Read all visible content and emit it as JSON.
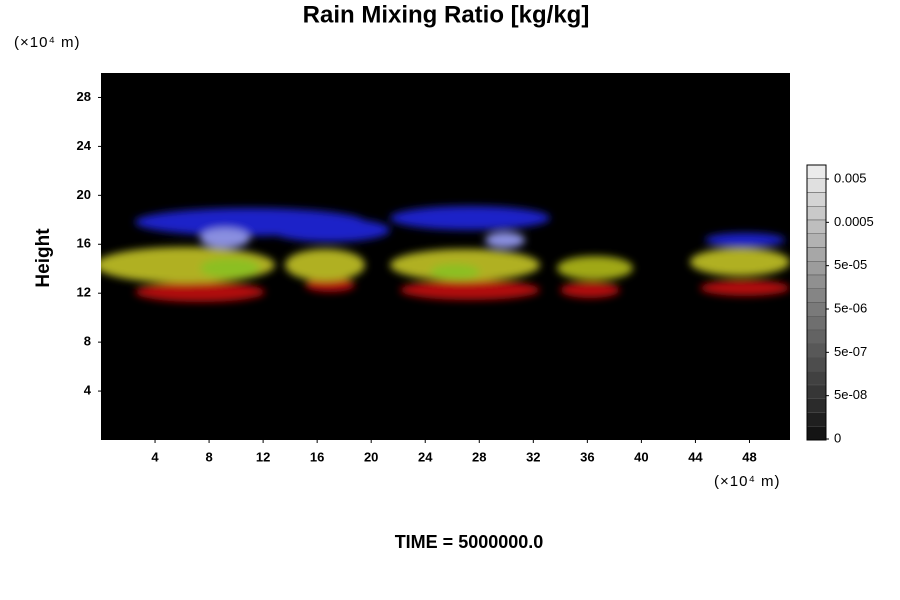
{
  "chart_data": {
    "type": "volume",
    "title": "Rain Mixing Ratio [kg/kg]",
    "y_label": "Height",
    "y_unit": "(×10⁴ m)",
    "x_unit": "(×10⁴ m)",
    "xlim": [
      0,
      51
    ],
    "xticks": [
      4,
      8,
      12,
      16,
      20,
      24,
      28,
      32,
      36,
      40,
      44,
      48
    ],
    "ylim": [
      0,
      30
    ],
    "yticks": [
      4,
      8,
      12,
      16,
      20,
      24,
      28
    ],
    "colorbar_ticks": [
      0.005,
      0.0005,
      {
        "value": 5e-05,
        "label": "5e-05"
      },
      {
        "value": 5e-06,
        "label": "5e-06"
      },
      {
        "value": 5e-07,
        "label": "5e-07"
      },
      {
        "value": 5e-08,
        "label": "5e-08"
      },
      0
    ],
    "footer": "TIME = 5000000.0"
  }
}
